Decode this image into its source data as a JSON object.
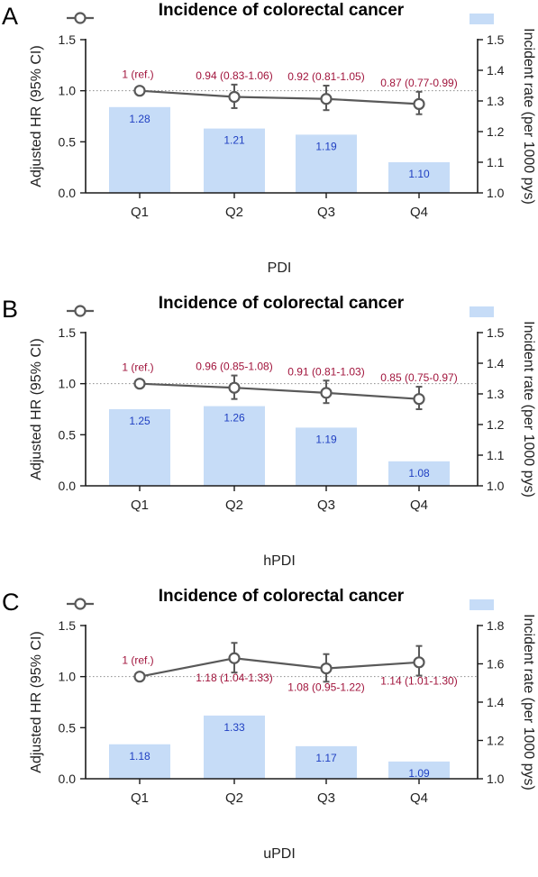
{
  "figure": {
    "colors": {
      "bar": "#c6dcf7",
      "bar_label": "#1f3fc2",
      "hr_label": "#a1143c",
      "line": "#595959",
      "axis": "#1a1a1a",
      "reference_line": "#8c8c8c"
    }
  },
  "chart_data": [
    {
      "panel_letter": "A",
      "type": "bar",
      "title": "Incidence of colorectal cancer",
      "xlabel": "PDI",
      "categories": [
        "Q1",
        "Q2",
        "Q3",
        "Q4"
      ],
      "left_axis": {
        "label": "Adjusted HR (95% CI)",
        "ylim": [
          0,
          1.5
        ],
        "ticks": [
          "0.0",
          "0.5",
          "1.0",
          "1.5"
        ],
        "reference_line": 1.0
      },
      "right_axis": {
        "label": "Incident rate (per 1000 pys)",
        "ylim": [
          1.0,
          1.5
        ],
        "ticks": [
          "1.0",
          "1.1",
          "1.2",
          "1.3",
          "1.4",
          "1.5"
        ]
      },
      "series": [
        {
          "name": "Incident rate",
          "axis": "right",
          "kind": "bar",
          "values": [
            1.28,
            1.21,
            1.19,
            1.1
          ],
          "labels": [
            "1.28",
            "1.21",
            "1.19",
            "1.10"
          ]
        },
        {
          "name": "Adjusted HR",
          "axis": "left",
          "kind": "line",
          "values": [
            1.0,
            0.94,
            0.92,
            0.87
          ],
          "ci_low": [
            null,
            0.83,
            0.81,
            0.77
          ],
          "ci_high": [
            null,
            1.06,
            1.05,
            0.99
          ],
          "labels": [
            "1 (ref.)",
            "0.94 (0.83-1.06)",
            "0.92 (0.81-1.05)",
            "0.87 (0.77-0.99)"
          ],
          "label_position": [
            "above",
            "above",
            "above",
            "above"
          ]
        }
      ]
    },
    {
      "panel_letter": "B",
      "type": "bar",
      "title": "Incidence of colorectal cancer",
      "xlabel": "hPDI",
      "categories": [
        "Q1",
        "Q2",
        "Q3",
        "Q4"
      ],
      "left_axis": {
        "label": "Adjusted HR (95% CI)",
        "ylim": [
          0,
          1.5
        ],
        "ticks": [
          "0.0",
          "0.5",
          "1.0",
          "1.5"
        ],
        "reference_line": 1.0
      },
      "right_axis": {
        "label": "Incident rate (per 1000 pys)",
        "ylim": [
          1.0,
          1.5
        ],
        "ticks": [
          "1.0",
          "1.1",
          "1.2",
          "1.3",
          "1.4",
          "1.5"
        ]
      },
      "series": [
        {
          "name": "Incident rate",
          "axis": "right",
          "kind": "bar",
          "values": [
            1.25,
            1.26,
            1.19,
            1.08
          ],
          "labels": [
            "1.25",
            "1.26",
            "1.19",
            "1.08"
          ]
        },
        {
          "name": "Adjusted HR",
          "axis": "left",
          "kind": "line",
          "values": [
            1.0,
            0.96,
            0.91,
            0.85
          ],
          "ci_low": [
            null,
            0.85,
            0.81,
            0.75
          ],
          "ci_high": [
            null,
            1.08,
            1.03,
            0.97
          ],
          "labels": [
            "1 (ref.)",
            "0.96 (0.85-1.08)",
            "0.91 (0.81-1.03)",
            "0.85 (0.75-0.97)"
          ],
          "label_position": [
            "above",
            "above",
            "above",
            "above"
          ]
        }
      ]
    },
    {
      "panel_letter": "C",
      "type": "bar",
      "title": "Incidence of colorectal cancer",
      "xlabel": "uPDI",
      "categories": [
        "Q1",
        "Q2",
        "Q3",
        "Q4"
      ],
      "left_axis": {
        "label": "Adjusted HR (95% CI)",
        "ylim": [
          0,
          1.5
        ],
        "ticks": [
          "0.0",
          "0.5",
          "1.0",
          "1.5"
        ],
        "reference_line": 1.0
      },
      "right_axis": {
        "label": "Incident rate (per 1000 pys)",
        "ylim": [
          1.0,
          1.8
        ],
        "ticks": [
          "1.0",
          "1.2",
          "1.4",
          "1.6",
          "1.8"
        ]
      },
      "series": [
        {
          "name": "Incident rate",
          "axis": "right",
          "kind": "bar",
          "values": [
            1.18,
            1.33,
            1.17,
            1.09
          ],
          "labels": [
            "1.18",
            "1.33",
            "1.17",
            "1.09"
          ]
        },
        {
          "name": "Adjusted HR",
          "axis": "left",
          "kind": "line",
          "values": [
            1.0,
            1.18,
            1.08,
            1.14
          ],
          "ci_low": [
            null,
            1.04,
            0.95,
            1.01
          ],
          "ci_high": [
            null,
            1.33,
            1.22,
            1.3
          ],
          "labels": [
            "1 (ref.)",
            "1.18 (1.04-1.33)",
            "1.08 (0.95-1.22)",
            "1.14 (1.01-1.30)"
          ],
          "label_position": [
            "above",
            "below",
            "below",
            "below"
          ]
        }
      ]
    }
  ]
}
